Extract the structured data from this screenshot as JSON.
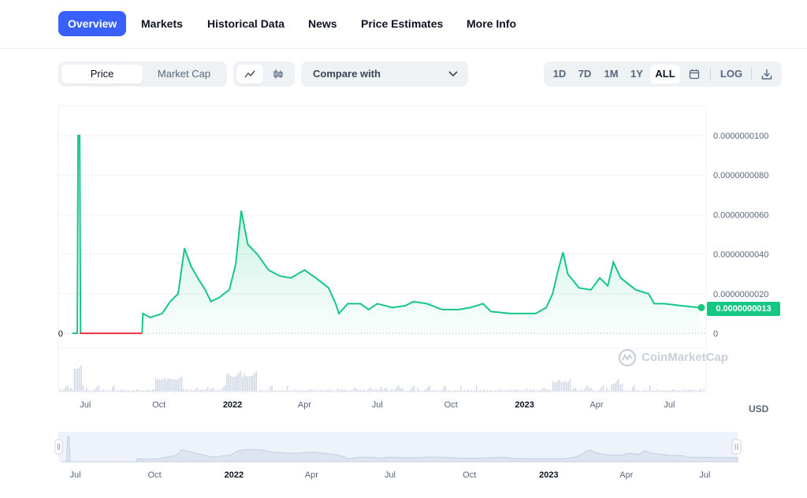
{
  "nav": {
    "tabs": [
      "Overview",
      "Markets",
      "Historical Data",
      "News",
      "Price Estimates",
      "More Info"
    ],
    "active_tab": "Overview"
  },
  "toolbar": {
    "metric_tabs": [
      "Price",
      "Market Cap"
    ],
    "active_metric": "Price",
    "chart_style_icons": [
      "line-chart-icon",
      "candlestick-icon"
    ],
    "compare_label": "Compare with",
    "ranges": [
      "1D",
      "7D",
      "1M",
      "1Y",
      "ALL"
    ],
    "active_range": "ALL",
    "log_label": "LOG",
    "calendar_icon": "calendar-icon",
    "download_icon": "download-icon"
  },
  "chart_data": {
    "type": "area",
    "currency_label": "USD",
    "watermark": "CoinMarketCap",
    "last_price_label": "0.0000000013",
    "ylim": [
      0,
      1e-08
    ],
    "y_ticks": [
      "0.0000000100",
      "0.0000000080",
      "0.0000000060",
      "0.0000000040",
      "0.0000000020",
      "0"
    ],
    "y_tick_values": [
      1e-08,
      8e-09,
      6e-09,
      4e-09,
      2e-09,
      0
    ],
    "left_zero_label": "0",
    "x_ticks": [
      {
        "label": "Jul",
        "date": "2021-07-01",
        "bold": false
      },
      {
        "label": "Oct",
        "date": "2021-10-01",
        "bold": false
      },
      {
        "label": "2022",
        "date": "2022-01-01",
        "bold": true
      },
      {
        "label": "Apr",
        "date": "2022-04-01",
        "bold": false
      },
      {
        "label": "Jul",
        "date": "2022-07-01",
        "bold": false
      },
      {
        "label": "Oct",
        "date": "2022-10-01",
        "bold": false
      },
      {
        "label": "2023",
        "date": "2023-01-01",
        "bold": true
      },
      {
        "label": "Apr",
        "date": "2023-04-01",
        "bold": false
      },
      {
        "label": "Jul",
        "date": "2023-07-01",
        "bold": false
      }
    ],
    "navigator_ticks": [
      {
        "label": "Jul",
        "date": "2021-07-01",
        "bold": false
      },
      {
        "label": "Oct",
        "date": "2021-10-01",
        "bold": false
      },
      {
        "label": "2022",
        "date": "2022-01-01",
        "bold": true
      },
      {
        "label": "Apr",
        "date": "2022-04-01",
        "bold": false
      },
      {
        "label": "Jul",
        "date": "2022-07-01",
        "bold": false
      },
      {
        "label": "Oct",
        "date": "2022-10-01",
        "bold": false
      },
      {
        "label": "2023",
        "date": "2023-01-01",
        "bold": true
      },
      {
        "label": "Apr",
        "date": "2023-04-01",
        "bold": false
      },
      {
        "label": "Jul",
        "date": "2023-07-01",
        "bold": false
      }
    ],
    "x_range": [
      "2021-06-15",
      "2023-08-08"
    ],
    "series": [
      {
        "color": "#16c784",
        "zero_color": "#ea3943",
        "points": [
          [
            "2021-06-15",
            0
          ],
          [
            "2021-06-21",
            0
          ],
          [
            "2021-06-22",
            1e-08
          ],
          [
            "2021-06-24",
            1e-08
          ],
          [
            "2021-06-25",
            0
          ],
          [
            "2021-09-10",
            0
          ],
          [
            "2021-09-11",
            1e-09
          ],
          [
            "2021-09-20",
            8e-10
          ],
          [
            "2021-10-05",
            1e-09
          ],
          [
            "2021-10-15",
            1.6e-09
          ],
          [
            "2021-10-25",
            2e-09
          ],
          [
            "2021-11-02",
            4.3e-09
          ],
          [
            "2021-11-10",
            3.4e-09
          ],
          [
            "2021-11-20",
            2.7e-09
          ],
          [
            "2021-11-28",
            2.2e-09
          ],
          [
            "2021-12-05",
            1.6e-09
          ],
          [
            "2021-12-15",
            1.8e-09
          ],
          [
            "2021-12-28",
            2.2e-09
          ],
          [
            "2022-01-05",
            3.5e-09
          ],
          [
            "2022-01-12",
            6.2e-09
          ],
          [
            "2022-01-20",
            4.5e-09
          ],
          [
            "2022-02-01",
            4e-09
          ],
          [
            "2022-02-15",
            3.2e-09
          ],
          [
            "2022-03-01",
            2.9e-09
          ],
          [
            "2022-03-15",
            2.8e-09
          ],
          [
            "2022-04-01",
            3.2e-09
          ],
          [
            "2022-04-15",
            2.8e-09
          ],
          [
            "2022-05-01",
            2.3e-09
          ],
          [
            "2022-05-10",
            1.5e-09
          ],
          [
            "2022-05-14",
            1e-09
          ],
          [
            "2022-05-25",
            1.5e-09
          ],
          [
            "2022-06-10",
            1.5e-09
          ],
          [
            "2022-06-20",
            1.2e-09
          ],
          [
            "2022-07-01",
            1.5e-09
          ],
          [
            "2022-07-20",
            1.3e-09
          ],
          [
            "2022-08-05",
            1.4e-09
          ],
          [
            "2022-08-15",
            1.6e-09
          ],
          [
            "2022-09-01",
            1.5e-09
          ],
          [
            "2022-09-20",
            1.2e-09
          ],
          [
            "2022-10-10",
            1.2e-09
          ],
          [
            "2022-10-25",
            1.3e-09
          ],
          [
            "2022-11-10",
            1.5e-09
          ],
          [
            "2022-11-20",
            1.1e-09
          ],
          [
            "2022-12-15",
            1e-09
          ],
          [
            "2023-01-15",
            1e-09
          ],
          [
            "2023-01-28",
            1.3e-09
          ],
          [
            "2023-02-05",
            2e-09
          ],
          [
            "2023-02-12",
            3.2e-09
          ],
          [
            "2023-02-18",
            4.1e-09
          ],
          [
            "2023-02-24",
            3e-09
          ],
          [
            "2023-03-10",
            2.3e-09
          ],
          [
            "2023-03-25",
            2.2e-09
          ],
          [
            "2023-04-05",
            2.8e-09
          ],
          [
            "2023-04-15",
            2.4e-09
          ],
          [
            "2023-04-22",
            3.6e-09
          ],
          [
            "2023-05-01",
            2.8e-09
          ],
          [
            "2023-05-20",
            2.2e-09
          ],
          [
            "2023-06-05",
            2e-09
          ],
          [
            "2023-06-12",
            1.5e-09
          ],
          [
            "2023-06-25",
            1.5e-09
          ],
          [
            "2023-07-15",
            1.4e-09
          ],
          [
            "2023-08-08",
            1.3e-09
          ]
        ]
      }
    ]
  }
}
